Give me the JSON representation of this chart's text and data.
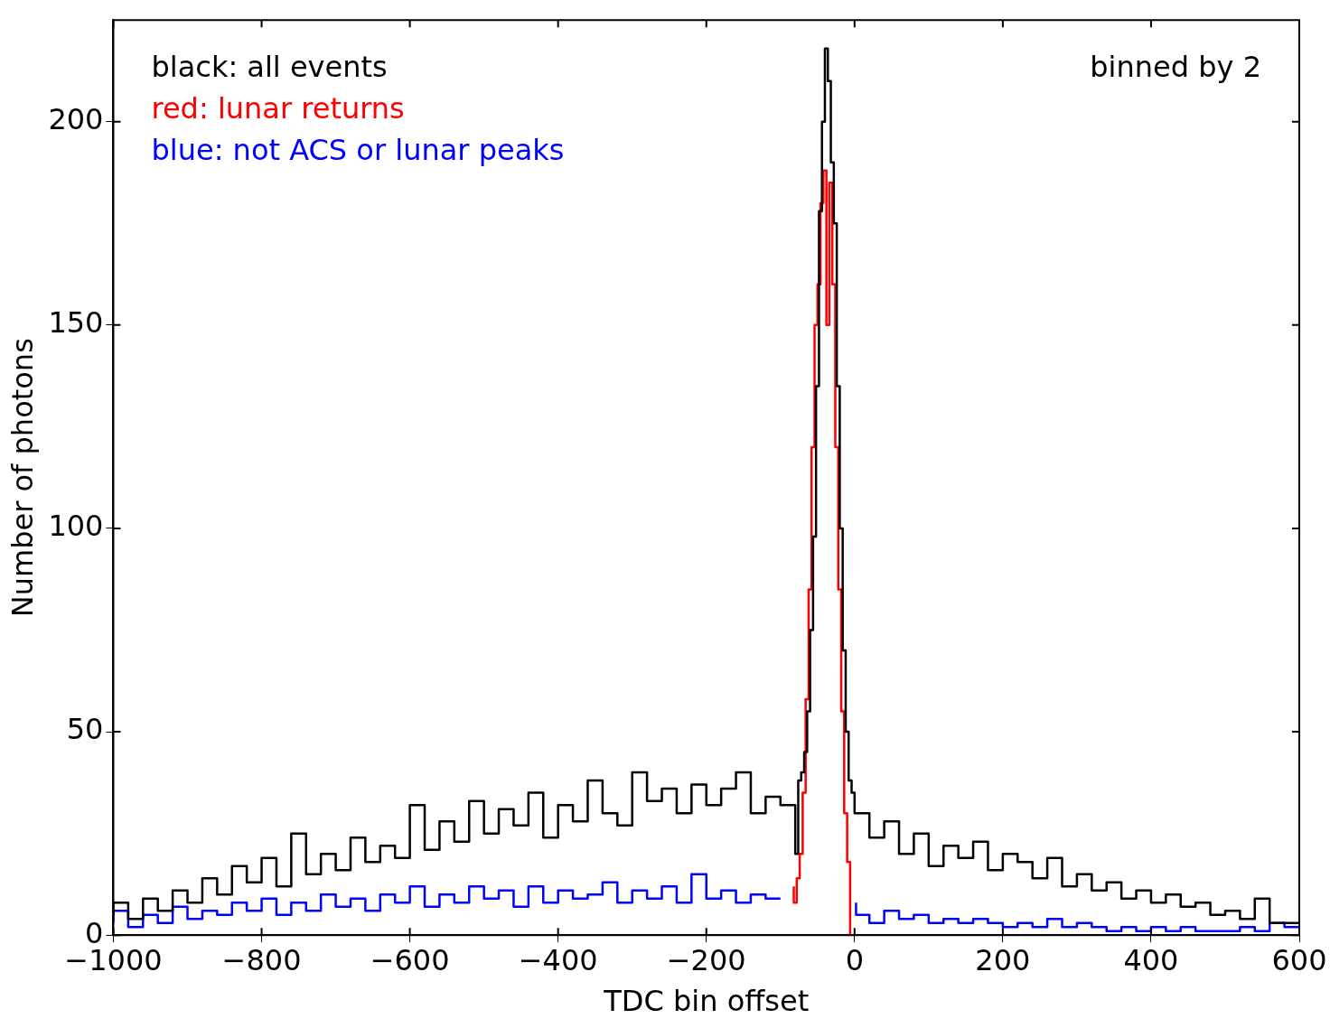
{
  "chart_data": {
    "type": "step",
    "xlabel": "TDC bin offset",
    "ylabel": "Number of photons",
    "annotations": [
      "binned by 2"
    ],
    "xlim": [
      -1000,
      600
    ],
    "xticks": [
      {
        "value": -1000,
        "label": "−1000"
      },
      {
        "value": -800,
        "label": "−800"
      },
      {
        "value": -600,
        "label": "−600"
      },
      {
        "value": -400,
        "label": "−400"
      },
      {
        "value": -200,
        "label": "−200"
      },
      0,
      200,
      400,
      600
    ],
    "ylim": [
      0,
      225
    ],
    "yticks": [
      0,
      50,
      100,
      150,
      200
    ],
    "grid": false,
    "legend": "top left",
    "series": [
      {
        "name": "black: all events",
        "color": "#000000",
        "x": [
          -1000,
          -980,
          -960,
          -940,
          -920,
          -900,
          -880,
          -860,
          -840,
          -820,
          -800,
          -780,
          -760,
          -740,
          -720,
          -700,
          -680,
          -660,
          -640,
          -620,
          -600,
          -580,
          -560,
          -540,
          -520,
          -500,
          -480,
          -460,
          -440,
          -420,
          -400,
          -380,
          -360,
          -340,
          -320,
          -300,
          -280,
          -260,
          -240,
          -220,
          -200,
          -180,
          -160,
          -140,
          -120,
          -100,
          -80,
          -76,
          -72,
          -68,
          -64,
          -60,
          -56,
          -52,
          -48,
          -44,
          -40,
          -36,
          -32,
          -28,
          -24,
          -20,
          -16,
          -12,
          -8,
          -4,
          0,
          20,
          40,
          60,
          80,
          100,
          120,
          140,
          160,
          180,
          200,
          220,
          240,
          260,
          280,
          300,
          320,
          340,
          360,
          380,
          400,
          420,
          440,
          460,
          480,
          500,
          520,
          540,
          560,
          580,
          600
        ],
        "values": [
          5,
          8,
          4,
          9,
          6,
          11,
          8,
          14,
          10,
          17,
          13,
          19,
          12,
          25,
          15,
          20,
          16,
          24,
          18,
          22,
          19,
          32,
          21,
          28,
          23,
          33,
          25,
          31,
          27,
          35,
          24,
          32,
          28,
          38,
          30,
          27,
          40,
          33,
          36,
          30,
          37,
          32,
          36,
          40,
          30,
          34,
          32,
          20,
          38,
          40,
          45,
          55,
          75,
          98,
          135,
          178,
          200,
          218,
          210,
          190,
          175,
          135,
          100,
          70,
          50,
          38,
          35,
          30,
          24,
          28,
          20,
          25,
          17,
          22,
          19,
          23,
          16,
          20,
          18,
          14,
          19,
          12,
          15,
          11,
          13,
          9,
          11,
          8,
          10,
          7,
          8,
          5,
          6,
          4,
          9,
          3,
          3
        ]
      },
      {
        "name": "red: lunar returns",
        "color": "#ff0000",
        "x": [
          -82,
          -78,
          -74,
          -70,
          -66,
          -62,
          -58,
          -54,
          -50,
          -46,
          -42,
          -38,
          -34,
          -30,
          -26,
          -22,
          -18,
          -14,
          -10,
          -6,
          -2
        ],
        "values": [
          12,
          8,
          14,
          20,
          35,
          58,
          85,
          120,
          150,
          160,
          180,
          188,
          150,
          185,
          160,
          120,
          85,
          55,
          30,
          18,
          0
        ]
      },
      {
        "name": "blue: not ACS or lunar peaks",
        "color": "#0000ff",
        "x": [
          -1000,
          -980,
          -960,
          -940,
          -920,
          -900,
          -880,
          -860,
          -840,
          -820,
          -800,
          -780,
          -760,
          -740,
          -720,
          -700,
          -680,
          -660,
          -640,
          -620,
          -600,
          -580,
          -560,
          -540,
          -520,
          -500,
          -480,
          -460,
          -440,
          -420,
          -400,
          -380,
          -360,
          -340,
          -320,
          -300,
          -280,
          -260,
          -240,
          -220,
          -200,
          -180,
          -160,
          -140,
          -120,
          -100,
          -84,
          2,
          20,
          40,
          60,
          80,
          100,
          120,
          140,
          160,
          180,
          200,
          220,
          240,
          260,
          280,
          300,
          320,
          340,
          360,
          380,
          400,
          420,
          440,
          460,
          480,
          500,
          520,
          540,
          560,
          580,
          600
        ],
        "values": [
          3,
          6,
          2,
          5,
          3,
          7,
          4,
          6,
          5,
          8,
          6,
          9,
          5,
          8,
          6,
          10,
          7,
          9,
          6,
          10,
          8,
          12,
          7,
          10,
          8,
          12,
          9,
          11,
          7,
          12,
          8,
          11,
          9,
          10,
          13,
          8,
          11,
          9,
          12,
          8,
          15,
          9,
          11,
          8,
          10,
          9,
          null,
          8,
          5,
          3,
          6,
          4,
          5,
          3,
          4,
          3,
          4,
          3,
          2,
          3,
          2,
          4,
          2,
          3,
          2,
          1,
          2,
          1,
          2,
          1,
          2,
          1,
          1,
          1,
          2,
          1,
          3,
          2
        ]
      }
    ]
  }
}
